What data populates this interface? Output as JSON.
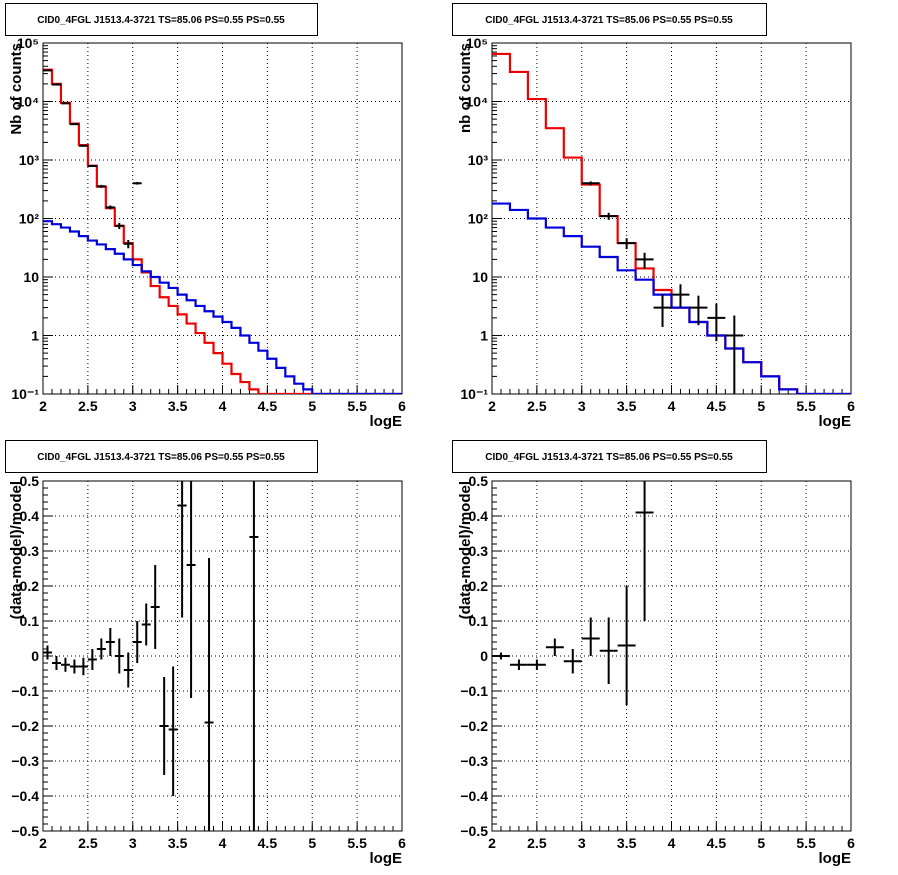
{
  "chart_data": [
    {
      "type": "step",
      "title": "CID0_4FGL J1513.4-3721 TS=85.06 PS=0.55 PS=0.55",
      "xlabel": "logE",
      "ylabel": "Nb of counts",
      "xlim": [
        2,
        6
      ],
      "ylim": [
        0.1,
        100000
      ],
      "yscale": "log",
      "grid": true,
      "x_ticks": [
        "2",
        "2.5",
        "3",
        "3.5",
        "4",
        "4.5",
        "5",
        "5.5",
        "6"
      ],
      "y_ticks": [
        "10⁻¹",
        "1",
        "10",
        "10²",
        "10³",
        "10⁴",
        "10⁵"
      ],
      "bin_edges": [
        2.0,
        2.1,
        2.2,
        2.3,
        2.4,
        2.5,
        2.6,
        2.7,
        2.8,
        2.9,
        3.0,
        3.1,
        3.2,
        3.3,
        3.4,
        3.5,
        3.6,
        3.7,
        3.8,
        3.9,
        4.0,
        4.1,
        4.2,
        4.3,
        4.4,
        4.5,
        4.6,
        4.7,
        4.8,
        4.9,
        5.0,
        5.1,
        5.2,
        5.3,
        5.4,
        5.5,
        5.6,
        5.7,
        5.8,
        5.9,
        6.0
      ],
      "series": [
        {
          "color": "#ee0000",
          "values": [
            35000,
            20000,
            9500,
            4200,
            1800,
            800,
            350,
            150,
            75,
            38,
            20,
            12,
            7,
            4.5,
            3.2,
            2.3,
            1.6,
            1.1,
            0.75,
            0.5,
            0.33,
            0.22,
            0.16,
            0.12,
            0.1,
            0.1,
            0.1,
            0.1,
            0.1,
            0.1,
            0.1,
            0.1,
            0.1,
            0.1,
            0.1,
            0.1,
            0.1,
            0.1,
            0.1,
            0.1
          ]
        },
        {
          "color": "#0000dd",
          "values": [
            90,
            80,
            70,
            60,
            50,
            42,
            36,
            30,
            25,
            20,
            16,
            12.5,
            10,
            8,
            6.5,
            5,
            4,
            3.2,
            2.6,
            2.1,
            1.7,
            1.35,
            1.0,
            0.75,
            0.55,
            0.4,
            0.28,
            0.2,
            0.15,
            0.12,
            0.1,
            0.1,
            0.1,
            0.1,
            0.1,
            0.1,
            0.1,
            0.1,
            0.1,
            0.1
          ]
        }
      ],
      "data_points": [
        {
          "x": 2.05,
          "y": 34000,
          "xerr": 0.05,
          "ylo": 33500,
          "yhi": 34500
        },
        {
          "x": 2.15,
          "y": 19500,
          "xerr": 0.05,
          "ylo": 19200,
          "yhi": 19800
        },
        {
          "x": 2.25,
          "y": 9300,
          "xerr": 0.05,
          "ylo": 9100,
          "yhi": 9500
        },
        {
          "x": 2.35,
          "y": 4100,
          "xerr": 0.05,
          "ylo": 4000,
          "yhi": 4200
        },
        {
          "x": 2.45,
          "y": 1750,
          "xerr": 0.05,
          "ylo": 1700,
          "yhi": 1800
        },
        {
          "x": 2.55,
          "y": 790,
          "xerr": 0.05,
          "ylo": 760,
          "yhi": 820
        },
        {
          "x": 2.65,
          "y": 355,
          "xerr": 0.05,
          "ylo": 335,
          "yhi": 375
        },
        {
          "x": 2.75,
          "y": 155,
          "xerr": 0.05,
          "ylo": 143,
          "yhi": 167
        },
        {
          "x": 2.85,
          "y": 75,
          "xerr": 0.05,
          "ylo": 66,
          "yhi": 84
        },
        {
          "x": 2.95,
          "y": 37,
          "xerr": 0.05,
          "ylo": 31,
          "yhi": 43
        },
        {
          "x": 3.05,
          "y": 400,
          "xerr": 0.05,
          "ylo": 380,
          "yhi": 420
        }
      ]
    },
    {
      "type": "step",
      "title": "CID0_4FGL J1513.4-3721 TS=85.06 PS=0.55 PS=0.55",
      "xlabel": "logE",
      "ylabel": "nb of counts",
      "xlim": [
        2,
        6
      ],
      "ylim": [
        0.1,
        100000
      ],
      "yscale": "log",
      "grid": true,
      "x_ticks": [
        "2",
        "2.5",
        "3",
        "3.5",
        "4",
        "4.5",
        "5",
        "5.5",
        "6"
      ],
      "y_ticks": [
        "10⁻¹",
        "1",
        "10",
        "10²",
        "10³",
        "10⁴",
        "10⁵"
      ],
      "bin_edges": [
        2.0,
        2.2,
        2.4,
        2.6,
        2.8,
        3.0,
        3.2,
        3.4,
        3.6,
        3.8,
        4.0,
        4.2,
        4.4,
        4.6,
        4.8,
        5.0,
        5.2,
        5.4,
        5.6,
        5.8,
        6.0
      ],
      "series": [
        {
          "color": "#ee0000",
          "values": [
            65000,
            32000,
            11000,
            3500,
            1100,
            380,
            110,
            38,
            14,
            6,
            3,
            1.7,
            1.0,
            0.6,
            0.35,
            0.2,
            0.12,
            0.1,
            0.1,
            0.1
          ]
        },
        {
          "color": "#0000dd",
          "values": [
            180,
            140,
            100,
            70,
            50,
            33,
            22,
            13,
            9,
            5,
            3,
            1.7,
            1.0,
            0.6,
            0.35,
            0.2,
            0.12,
            0.1,
            0.1,
            0.1
          ]
        }
      ],
      "data_points": [
        {
          "x": 3.1,
          "y": 400,
          "xerr": 0.1,
          "ylo": 370,
          "yhi": 430
        },
        {
          "x": 3.3,
          "y": 110,
          "xerr": 0.1,
          "ylo": 95,
          "yhi": 125
        },
        {
          "x": 3.5,
          "y": 38,
          "xerr": 0.1,
          "ylo": 30,
          "yhi": 46
        },
        {
          "x": 3.7,
          "y": 20,
          "xerr": 0.1,
          "ylo": 14,
          "yhi": 26
        },
        {
          "x": 3.9,
          "y": 3,
          "xerr": 0.1,
          "ylo": 1.4,
          "yhi": 5
        },
        {
          "x": 4.1,
          "y": 5,
          "xerr": 0.1,
          "ylo": 3,
          "yhi": 7.5
        },
        {
          "x": 4.3,
          "y": 3,
          "xerr": 0.1,
          "ylo": 1.5,
          "yhi": 4.8
        },
        {
          "x": 4.5,
          "y": 2,
          "xerr": 0.1,
          "ylo": 0.8,
          "yhi": 3.5
        },
        {
          "x": 4.7,
          "y": 1,
          "xerr": 0.1,
          "ylo": 0.1,
          "yhi": 2.2
        }
      ]
    },
    {
      "type": "scatter",
      "title": "CID0_4FGL J1513.4-3721 TS=85.06 PS=0.55 PS=0.55",
      "xlabel": "logE",
      "ylabel": "(data-model)/model",
      "xlim": [
        2,
        6
      ],
      "ylim": [
        -0.5,
        0.5
      ],
      "grid": true,
      "x_ticks": [
        "2",
        "2.5",
        "3",
        "3.5",
        "4",
        "4.5",
        "5",
        "5.5",
        "6"
      ],
      "y_ticks": [
        "−0.5",
        "−0.4",
        "−0.3",
        "−0.2",
        "−0.1",
        "0",
        "0.1",
        "0.2",
        "0.3",
        "0.4",
        "0.5"
      ],
      "data_points": [
        {
          "x": 2.05,
          "y": 0.01,
          "xerr": 0.05,
          "ylo": -0.01,
          "yhi": 0.03
        },
        {
          "x": 2.15,
          "y": -0.02,
          "xerr": 0.05,
          "ylo": -0.04,
          "yhi": 0.0
        },
        {
          "x": 2.25,
          "y": -0.025,
          "xerr": 0.05,
          "ylo": -0.045,
          "yhi": -0.005
        },
        {
          "x": 2.35,
          "y": -0.03,
          "xerr": 0.05,
          "ylo": -0.05,
          "yhi": -0.01
        },
        {
          "x": 2.45,
          "y": -0.03,
          "xerr": 0.05,
          "ylo": -0.055,
          "yhi": -0.005
        },
        {
          "x": 2.55,
          "y": -0.01,
          "xerr": 0.05,
          "ylo": -0.04,
          "yhi": 0.02
        },
        {
          "x": 2.65,
          "y": 0.02,
          "xerr": 0.05,
          "ylo": -0.01,
          "yhi": 0.05
        },
        {
          "x": 2.75,
          "y": 0.04,
          "xerr": 0.05,
          "ylo": 0.0,
          "yhi": 0.08
        },
        {
          "x": 2.85,
          "y": 0.0,
          "xerr": 0.05,
          "ylo": -0.05,
          "yhi": 0.05
        },
        {
          "x": 2.95,
          "y": -0.04,
          "xerr": 0.05,
          "ylo": -0.09,
          "yhi": 0.01
        },
        {
          "x": 3.05,
          "y": 0.04,
          "xerr": 0.05,
          "ylo": -0.02,
          "yhi": 0.1
        },
        {
          "x": 3.15,
          "y": 0.09,
          "xerr": 0.05,
          "ylo": 0.03,
          "yhi": 0.15
        },
        {
          "x": 3.25,
          "y": 0.14,
          "xerr": 0.05,
          "ylo": 0.02,
          "yhi": 0.26
        },
        {
          "x": 3.35,
          "y": -0.2,
          "xerr": 0.05,
          "ylo": -0.34,
          "yhi": -0.06
        },
        {
          "x": 3.45,
          "y": -0.21,
          "xerr": 0.05,
          "ylo": -0.4,
          "yhi": -0.03
        },
        {
          "x": 3.55,
          "y": 0.43,
          "xerr": 0.05,
          "ylo": 0.11,
          "yhi": 0.5
        },
        {
          "x": 3.65,
          "y": 0.26,
          "xerr": 0.05,
          "ylo": -0.12,
          "yhi": 0.5
        },
        {
          "x": 3.85,
          "y": -0.19,
          "xerr": 0.05,
          "ylo": -0.5,
          "yhi": 0.28
        },
        {
          "x": 4.35,
          "y": 0.34,
          "xerr": 0.05,
          "ylo": -0.5,
          "yhi": 0.5
        }
      ]
    },
    {
      "type": "scatter",
      "title": "CID0_4FGL J1513.4-3721 TS=85.06 PS=0.55 PS=0.55",
      "xlabel": "logE",
      "ylabel": "(data-model)/model",
      "xlim": [
        2,
        6
      ],
      "ylim": [
        -0.5,
        0.5
      ],
      "grid": true,
      "x_ticks": [
        "2",
        "2.5",
        "3",
        "3.5",
        "4",
        "4.5",
        "5",
        "5.5",
        "6"
      ],
      "y_ticks": [
        "−0.5",
        "−0.4",
        "−0.3",
        "−0.2",
        "−0.1",
        "0",
        "0.1",
        "0.2",
        "0.3",
        "0.4",
        "0.5"
      ],
      "data_points": [
        {
          "x": 2.1,
          "y": 0.0,
          "xerr": 0.1,
          "ylo": -0.01,
          "yhi": 0.01
        },
        {
          "x": 2.3,
          "y": -0.025,
          "xerr": 0.1,
          "ylo": -0.04,
          "yhi": -0.01
        },
        {
          "x": 2.5,
          "y": -0.025,
          "xerr": 0.1,
          "ylo": -0.04,
          "yhi": -0.01
        },
        {
          "x": 2.7,
          "y": 0.025,
          "xerr": 0.1,
          "ylo": 0.0,
          "yhi": 0.05
        },
        {
          "x": 2.9,
          "y": -0.015,
          "xerr": 0.1,
          "ylo": -0.05,
          "yhi": 0.02
        },
        {
          "x": 3.1,
          "y": 0.05,
          "xerr": 0.1,
          "ylo": 0.0,
          "yhi": 0.11
        },
        {
          "x": 3.3,
          "y": 0.015,
          "xerr": 0.1,
          "ylo": -0.08,
          "yhi": 0.11
        },
        {
          "x": 3.5,
          "y": 0.03,
          "xerr": 0.1,
          "ylo": -0.14,
          "yhi": 0.2
        },
        {
          "x": 3.7,
          "y": 0.41,
          "xerr": 0.1,
          "ylo": 0.1,
          "yhi": 0.5
        }
      ]
    }
  ]
}
